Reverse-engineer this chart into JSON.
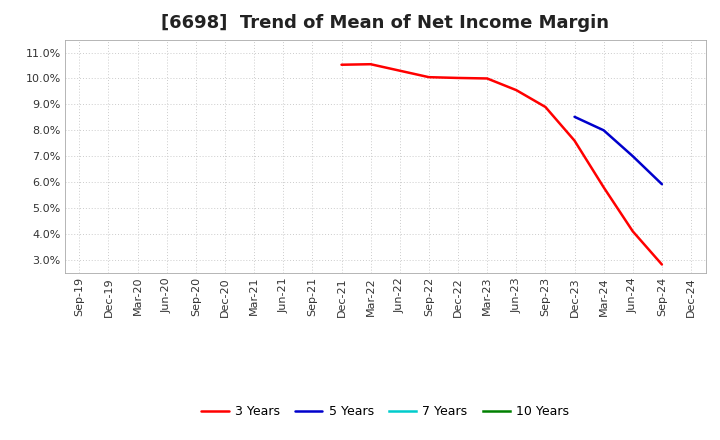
{
  "title": "[6698]  Trend of Mean of Net Income Margin",
  "ylim": [
    2.5,
    11.5
  ],
  "yticks": [
    3.0,
    4.0,
    5.0,
    6.0,
    7.0,
    8.0,
    9.0,
    10.0,
    11.0
  ],
  "ytick_labels": [
    "3.0%",
    "4.0%",
    "5.0%",
    "6.0%",
    "7.0%",
    "8.0%",
    "9.0%",
    "10.0%",
    "11.0%"
  ],
  "background_color": "#ffffff",
  "grid_color": "#cccccc",
  "series_3y": {
    "label": "3 Years",
    "color": "#ff0000",
    "x": [
      "Dec-21",
      "Mar-22",
      "Jun-22",
      "Sep-22",
      "Dec-22",
      "Mar-23",
      "Jun-23",
      "Sep-23",
      "Dec-23",
      "Mar-24",
      "Jun-24",
      "Sep-24"
    ],
    "y": [
      10.53,
      10.55,
      10.3,
      10.05,
      10.02,
      10.0,
      9.55,
      8.9,
      7.6,
      5.8,
      4.1,
      2.82
    ]
  },
  "series_5y": {
    "label": "5 Years",
    "color": "#0000cc",
    "x": [
      "Dec-23",
      "Mar-24",
      "Jun-24",
      "Sep-24"
    ],
    "y": [
      8.52,
      8.0,
      7.0,
      5.92
    ]
  },
  "series_7y": {
    "label": "7 Years",
    "color": "#00cccc",
    "x": [],
    "y": []
  },
  "series_10y": {
    "label": "10 Years",
    "color": "#008000",
    "x": [],
    "y": []
  },
  "xtick_labels": [
    "Sep-19",
    "Dec-19",
    "Mar-20",
    "Jun-20",
    "Sep-20",
    "Dec-20",
    "Mar-21",
    "Jun-21",
    "Sep-21",
    "Dec-21",
    "Mar-22",
    "Jun-22",
    "Sep-22",
    "Dec-22",
    "Mar-23",
    "Jun-23",
    "Sep-23",
    "Dec-23",
    "Mar-24",
    "Jun-24",
    "Sep-24",
    "Dec-24"
  ],
  "title_fontsize": 13,
  "tick_fontsize": 8,
  "legend_fontsize": 9
}
